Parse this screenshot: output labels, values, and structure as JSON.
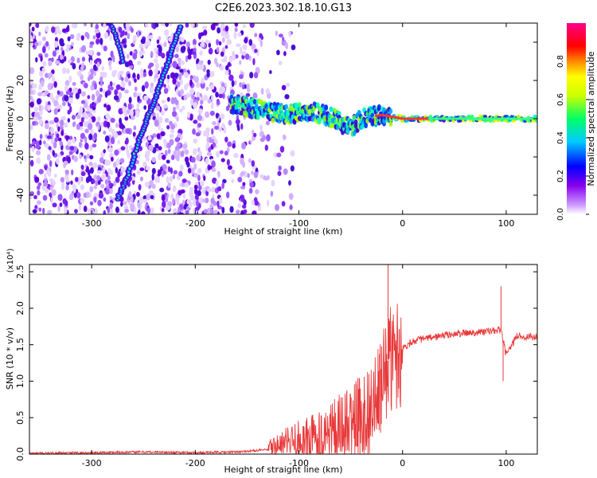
{
  "title": "C2E6.2023.302.18.10.G13",
  "chart_data": [
    {
      "type": "heatmap",
      "xlabel": "Height of straight line (km)",
      "ylabel": "Frequency (Hz)",
      "xlim": [
        -360,
        130
      ],
      "ylim": [
        -50,
        50
      ],
      "x_ticks": [
        -300,
        -200,
        -100,
        0,
        100
      ],
      "y_ticks": [
        -40,
        -20,
        0,
        20,
        40
      ],
      "colorbar": {
        "label": "Normalized spectral amplitude",
        "range": [
          0.0,
          1.0
        ],
        "ticks": [
          "0.0",
          "0.2",
          "0.4",
          "0.6",
          "0.8"
        ],
        "colors": [
          "#ffffff",
          "#cc99ff",
          "#8800ee",
          "#0000ff",
          "#00ccff",
          "#00ff66",
          "#ccff00",
          "#ffff00",
          "#ff8800",
          "#ff0000",
          "#ff0088"
        ]
      },
      "features": {
        "noise_region_x": [
          -360,
          -135
        ],
        "diagonal_trace": [
          [
            -275,
            -42
          ],
          [
            -265,
            -30
          ],
          [
            -255,
            -12
          ],
          [
            -245,
            2
          ],
          [
            -235,
            16
          ],
          [
            -225,
            32
          ],
          [
            -215,
            48
          ]
        ],
        "secondary_trace": [
          [
            -280,
            48
          ],
          [
            -275,
            40
          ],
          [
            -270,
            30
          ]
        ],
        "signal_band_center": [
          [
            -165,
            8
          ],
          [
            -140,
            5
          ],
          [
            -110,
            2
          ],
          [
            -90,
            4
          ],
          [
            -70,
            1
          ],
          [
            -50,
            -5
          ],
          [
            -40,
            0
          ],
          [
            -20,
            2
          ],
          [
            0,
            0
          ],
          [
            130,
            0
          ]
        ]
      }
    },
    {
      "type": "line",
      "xlabel": "Height of straight line (km)",
      "ylabel": "SNR (10 * v/v)",
      "y_multiplier": "(x10⁴)",
      "xlim": [
        -360,
        130
      ],
      "ylim": [
        0,
        2.6
      ],
      "x_ticks": [
        -300,
        -200,
        -100,
        0,
        100
      ],
      "y_ticks": [
        "0.0",
        "0.5",
        "1.0",
        "1.5",
        "2.0",
        "2.5"
      ],
      "series_color": "#e8393a",
      "x": [
        -360,
        -300,
        -250,
        -200,
        -160,
        -130,
        -110,
        -90,
        -70,
        -55,
        -45,
        -35,
        -25,
        -18,
        -14,
        -10,
        0,
        10,
        20,
        30,
        40,
        60,
        80,
        95,
        100,
        110,
        130
      ],
      "y": [
        0.01,
        0.02,
        0.03,
        0.02,
        0.03,
        0.06,
        0.15,
        0.2,
        0.3,
        0.35,
        0.45,
        0.55,
        0.7,
        1.05,
        1.3,
        1.3,
        1.45,
        1.55,
        1.58,
        1.6,
        1.63,
        1.66,
        1.68,
        1.7,
        1.35,
        1.62,
        1.6
      ],
      "spikes": [
        [
          -14,
          2.6
        ],
        [
          -45,
          1.0
        ],
        [
          -30,
          0.9
        ],
        [
          95,
          2.3
        ],
        [
          97,
          1.0
        ]
      ]
    }
  ]
}
